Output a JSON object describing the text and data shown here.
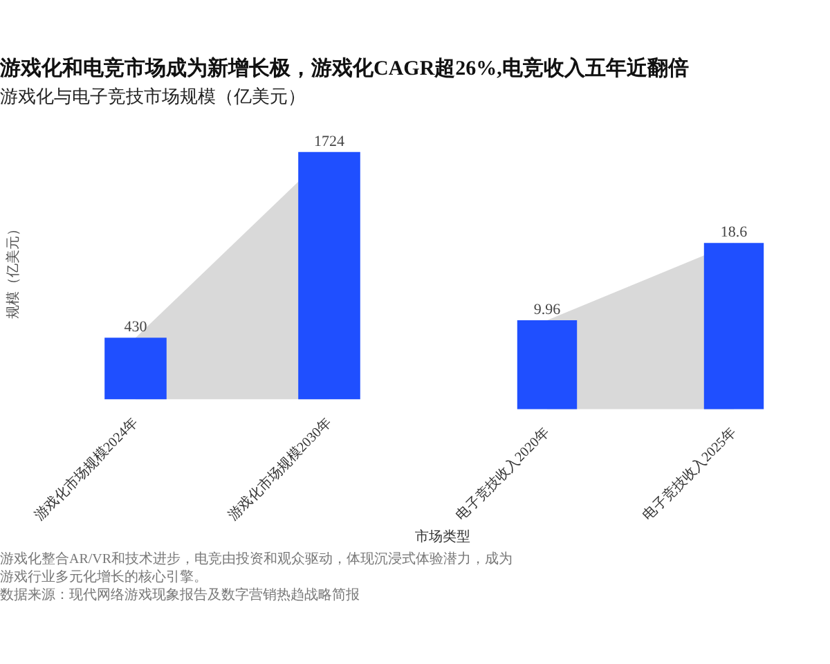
{
  "chart_data": [
    {
      "type": "bar",
      "title": "游戏化和电竞市场成为新增长极，游戏化CAGR超26%,电竞收入五年近翻倍",
      "subtitle": "游戏化与电子竞技市场规模（亿美元）",
      "xlabel": "市场类型",
      "ylabel": "规模（亿美元）",
      "categories": [
        "游戏化市场规模2024年",
        "游戏化市场规模2030年"
      ],
      "series": [
        {
          "type": "area",
          "color": "#d9d9d9",
          "values": [
            430,
            1724
          ]
        },
        {
          "color": "#1f4fff",
          "values": [
            430,
            1724
          ],
          "value_labels": [
            "430",
            "1724"
          ]
        }
      ],
      "tick_labels": "x",
      "grid": false,
      "legend": false,
      "annotations": [
        "游戏化整合AR/VR和技术进步，电竞由投资和观众驱动，体现沉浸式体验潜力，成为游戏行业多元化增长的核心引擎。",
        "数据来源：现代网络游戏现象报告及数字营销热趋战略简报"
      ]
    },
    {
      "type": "bar",
      "categories": [
        "电子竞技收入2020年",
        "电子竞技收入2025年"
      ],
      "series": [
        {
          "type": "area",
          "color": "#d9d9d9",
          "values": [
            9.96,
            18.6
          ]
        },
        {
          "color": "#1f4fff",
          "values": [
            9.96,
            18.6
          ],
          "value_labels": [
            "9.96",
            "18.6"
          ]
        }
      ],
      "tick_labels": "x",
      "grid": false,
      "legend": false
    }
  ]
}
